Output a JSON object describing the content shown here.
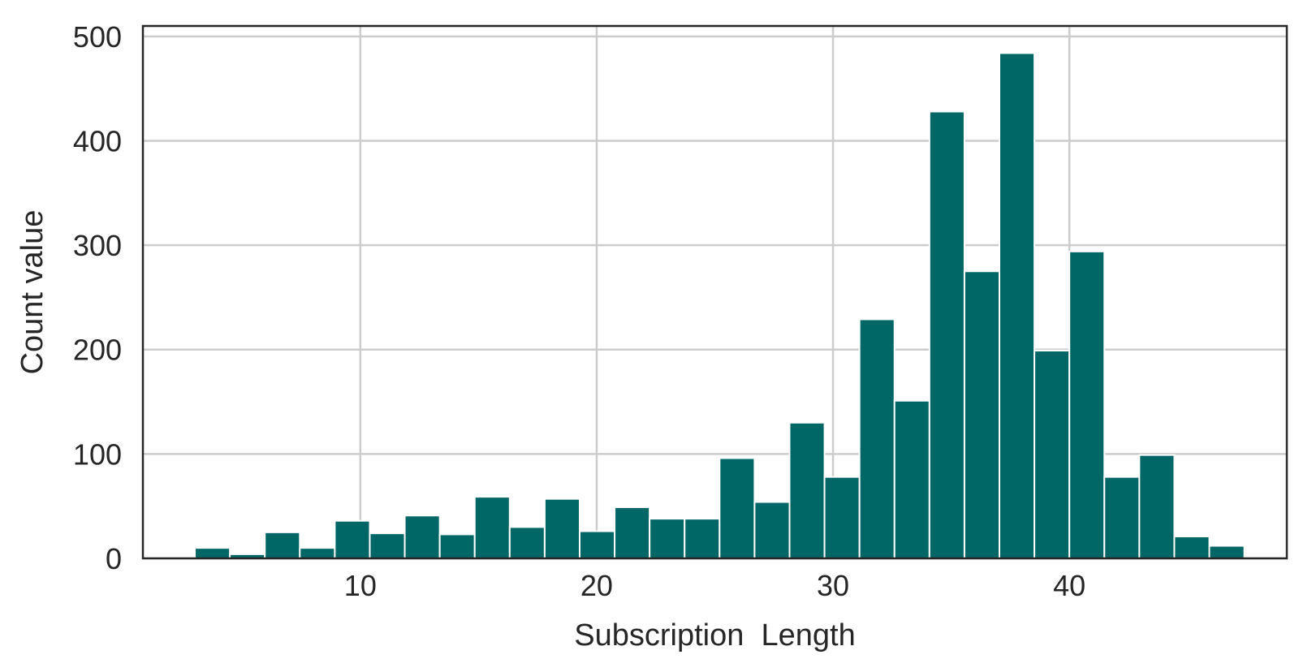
{
  "chart_data": {
    "type": "bar",
    "xlabel": "Subscription  Length",
    "ylabel": "Count value",
    "xlim": [
      0.8,
      49.2
    ],
    "ylim": [
      0,
      510
    ],
    "xticks": [
      10,
      20,
      30,
      40
    ],
    "yticks": [
      0,
      100,
      200,
      300,
      400,
      500
    ],
    "grid": true,
    "bar_color": "#006666",
    "bin_width": 1.48,
    "bins": [
      {
        "x0": 3.0,
        "count": 10
      },
      {
        "x0": 4.48,
        "count": 4
      },
      {
        "x0": 5.96,
        "count": 25
      },
      {
        "x0": 7.44,
        "count": 10
      },
      {
        "x0": 8.92,
        "count": 36
      },
      {
        "x0": 10.4,
        "count": 24
      },
      {
        "x0": 11.88,
        "count": 41
      },
      {
        "x0": 13.36,
        "count": 23
      },
      {
        "x0": 14.84,
        "count": 59
      },
      {
        "x0": 16.32,
        "count": 30
      },
      {
        "x0": 17.8,
        "count": 57
      },
      {
        "x0": 19.28,
        "count": 26
      },
      {
        "x0": 20.76,
        "count": 49
      },
      {
        "x0": 22.24,
        "count": 38
      },
      {
        "x0": 23.72,
        "count": 38
      },
      {
        "x0": 25.2,
        "count": 96
      },
      {
        "x0": 26.68,
        "count": 54
      },
      {
        "x0": 28.16,
        "count": 130
      },
      {
        "x0": 29.64,
        "count": 78
      },
      {
        "x0": 31.12,
        "count": 229
      },
      {
        "x0": 32.6,
        "count": 151
      },
      {
        "x0": 34.08,
        "count": 428
      },
      {
        "x0": 35.56,
        "count": 275
      },
      {
        "x0": 37.04,
        "count": 484
      },
      {
        "x0": 38.52,
        "count": 199
      },
      {
        "x0": 40.0,
        "count": 294
      },
      {
        "x0": 41.48,
        "count": 78
      },
      {
        "x0": 42.96,
        "count": 99
      },
      {
        "x0": 44.44,
        "count": 21
      },
      {
        "x0": 45.92,
        "count": 12
      }
    ]
  }
}
